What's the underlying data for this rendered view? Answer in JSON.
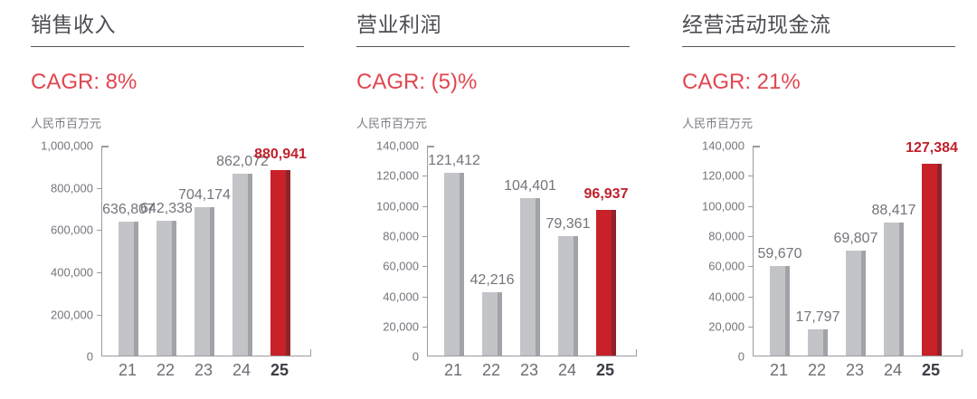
{
  "page": {
    "background": "#ffffff"
  },
  "colors": {
    "bar_gray": "#c3c4c8",
    "bar_gray_edge": "#a2a3a8",
    "bar_red": "#c8212a",
    "bar_red_edge": "#8e242a",
    "cagr_red": "#e1464f",
    "value_highlight_red": "#c1202c",
    "axis_gray": "#9b9ba1",
    "title_text": "#4c4c54",
    "tick_text": "#74747c",
    "xlabel_text": "#6d6d75",
    "xlabel_highlight_text": "#3d3d46",
    "value_text": "#73737b",
    "unit_text": "#7b7b83",
    "title_underline": "#55555d"
  },
  "chart_data": [
    {
      "type": "bar",
      "title": "销售收入",
      "cagr_label": "CAGR: 8%",
      "unit_label": "人民币百万元",
      "categories": [
        "21",
        "22",
        "23",
        "24",
        "25"
      ],
      "values": [
        636807,
        642338,
        704174,
        862072,
        880941
      ],
      "value_labels": [
        "636,807",
        "642,338",
        "704,174",
        "862,072",
        "880,941"
      ],
      "highlight_index": 4,
      "ylim": [
        0,
        1000000
      ],
      "tick_step": 200000,
      "ytick_labels": [
        "0",
        "200,000",
        "400,000",
        "600,000",
        "800,000",
        "1,000,000"
      ],
      "grid": false,
      "legend": "none"
    },
    {
      "type": "bar",
      "title": "营业利润",
      "cagr_label": "CAGR: (5)%",
      "unit_label": "人民币百万元",
      "categories": [
        "21",
        "22",
        "23",
        "24",
        "25"
      ],
      "values": [
        121412,
        42216,
        104401,
        79361,
        96937
      ],
      "value_labels": [
        "121,412",
        "42,216",
        "104,401",
        "79,361",
        "96,937"
      ],
      "highlight_index": 4,
      "ylim": [
        0,
        140000
      ],
      "tick_step": 20000,
      "ytick_labels": [
        "0",
        "20,000",
        "40,000",
        "60,000",
        "80,000",
        "100,000",
        "120,000",
        "140,000"
      ],
      "grid": false,
      "legend": "none"
    },
    {
      "type": "bar",
      "title": "经营活动现金流",
      "cagr_label": "CAGR: 21%",
      "unit_label": "人民币百万元",
      "categories": [
        "21",
        "22",
        "23",
        "24",
        "25"
      ],
      "values": [
        59670,
        17797,
        69807,
        88417,
        127384
      ],
      "value_labels": [
        "59,670",
        "17,797",
        "69,807",
        "88,417",
        "127,384"
      ],
      "highlight_index": 4,
      "ylim": [
        0,
        140000
      ],
      "tick_step": 20000,
      "ytick_labels": [
        "0",
        "20,000",
        "40,000",
        "60,000",
        "80,000",
        "100,000",
        "120,000",
        "140,000"
      ],
      "grid": false,
      "legend": "none"
    }
  ]
}
